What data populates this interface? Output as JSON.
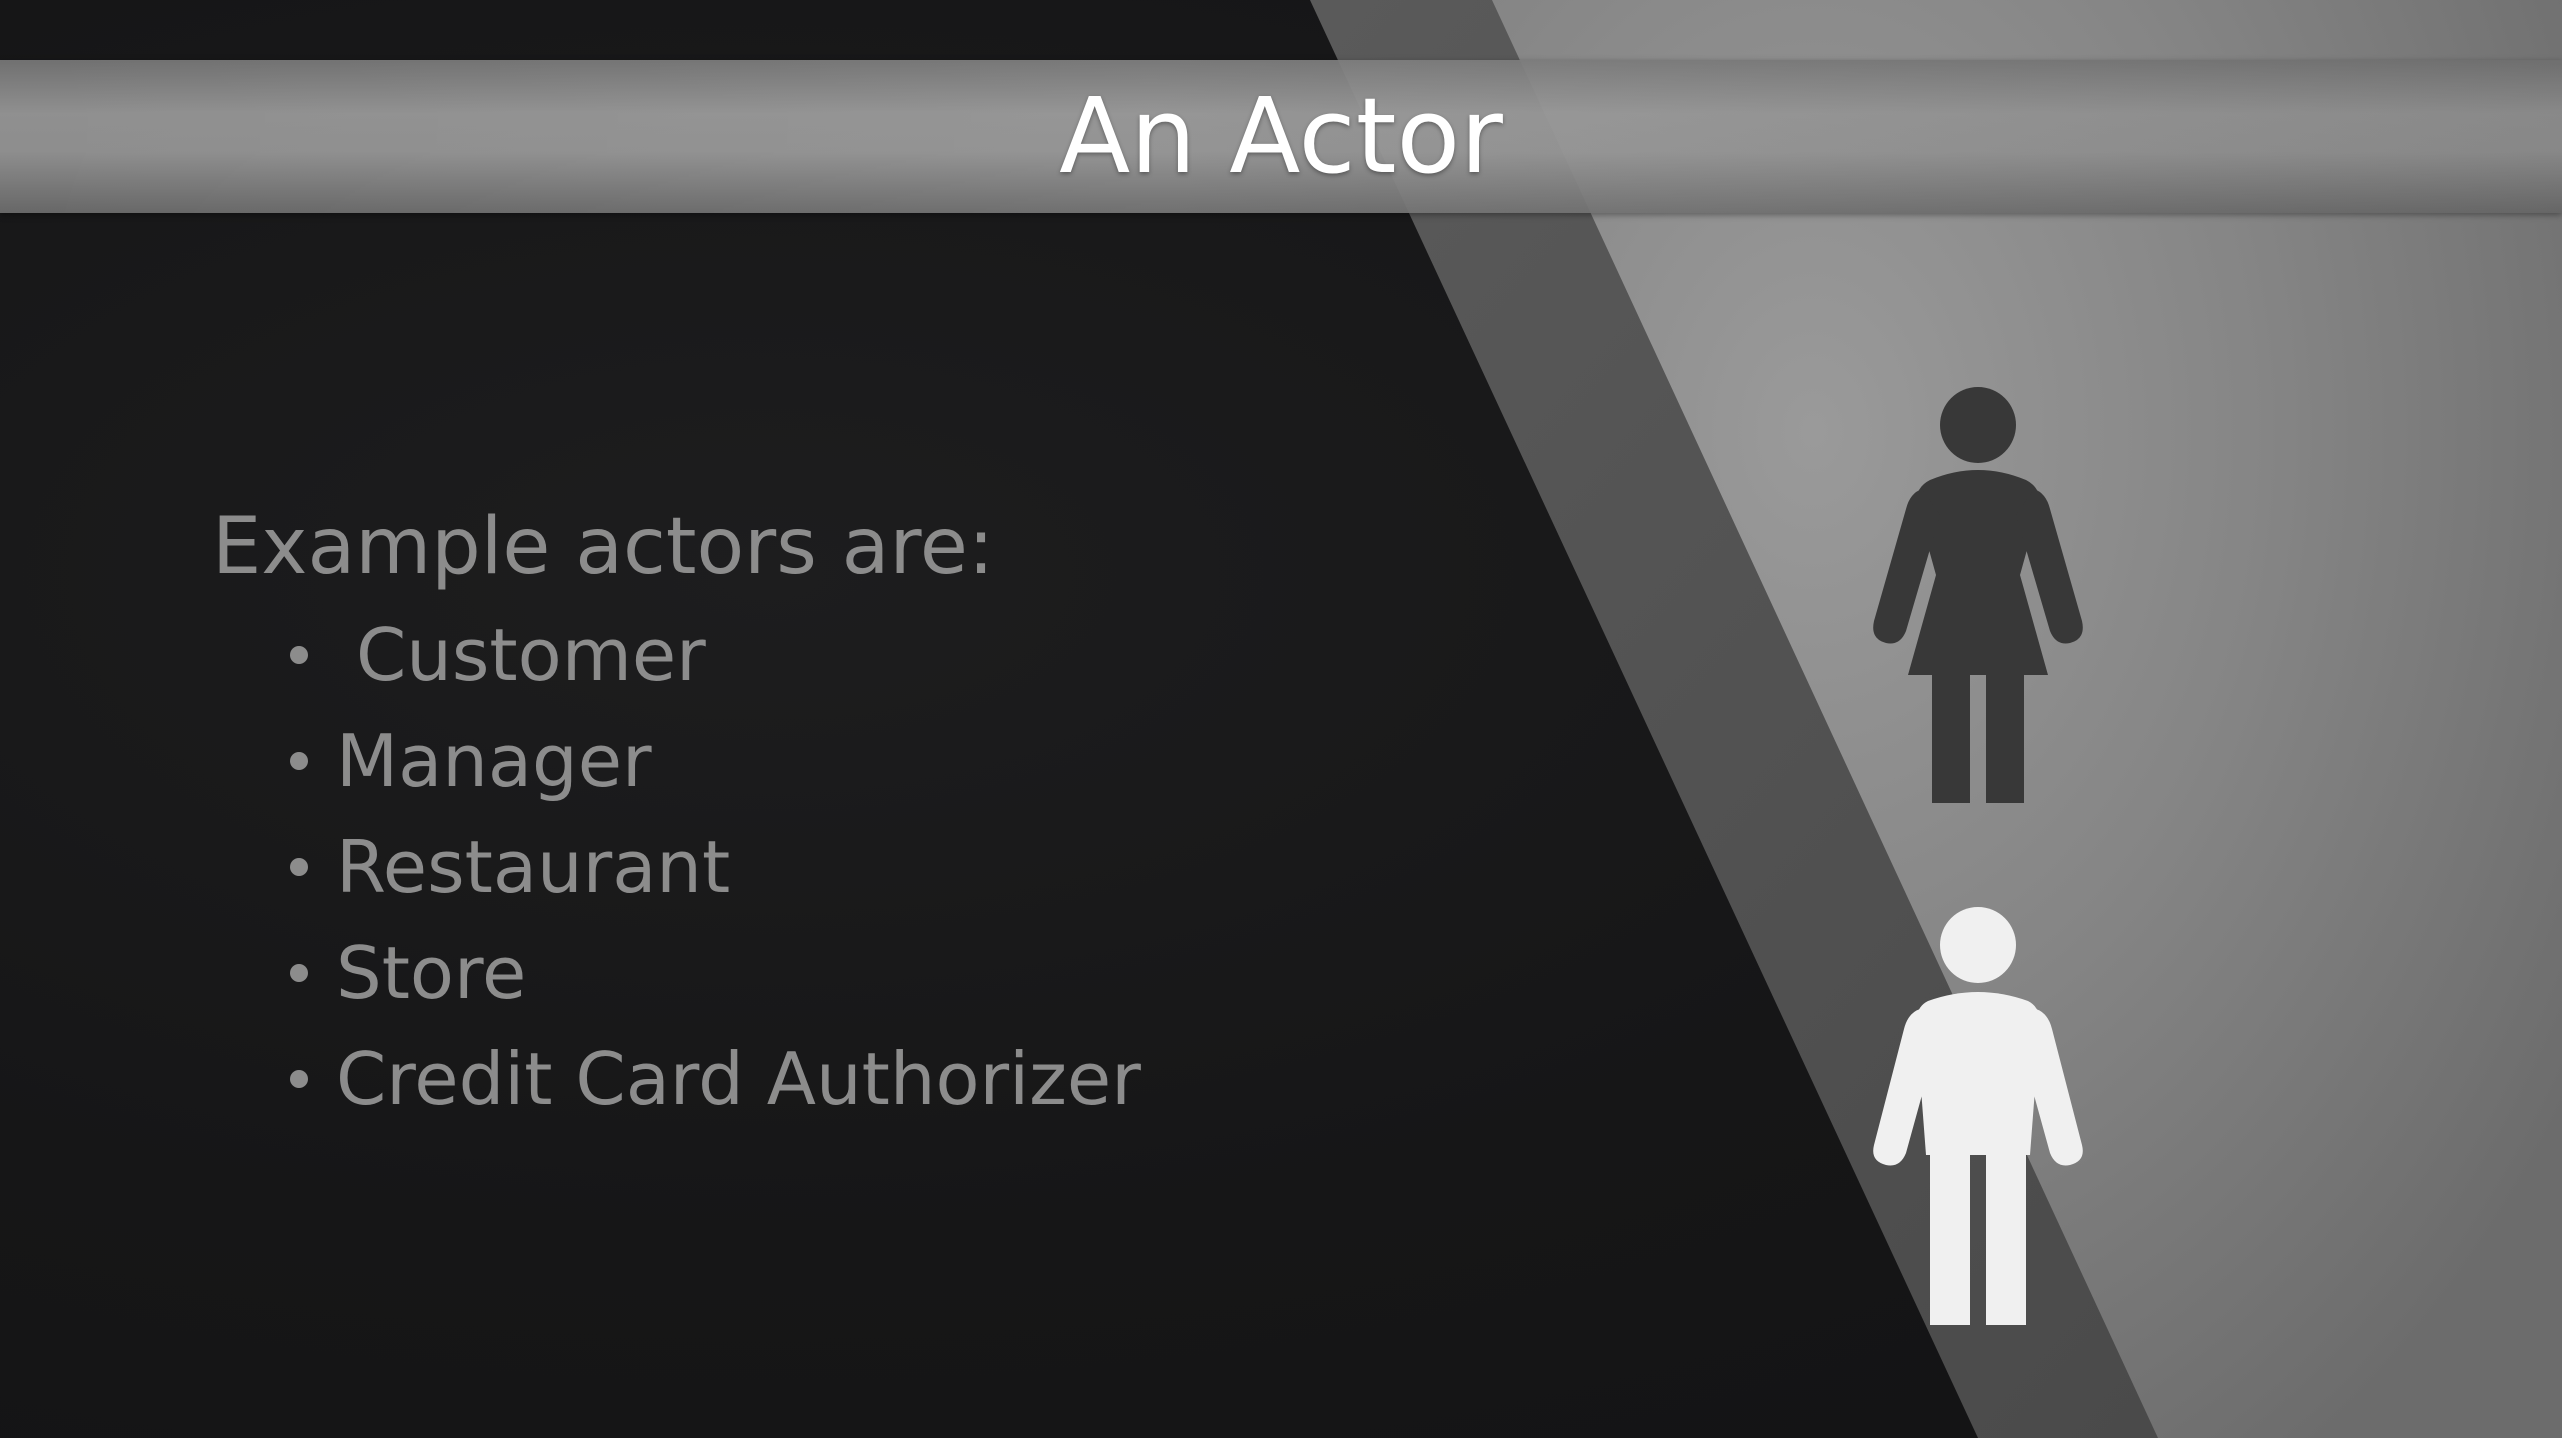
{
  "slide": {
    "title": "An Actor",
    "intro": "Example actors are:",
    "bullets": [
      "Customer",
      "Manager",
      "Restaurant",
      "Store",
      "Credit Card Authorizer"
    ]
  },
  "icons": {
    "top": "woman-figure-icon",
    "bottom": "man-figure-icon"
  },
  "colors": {
    "background": "#161617",
    "title_band": "#969696",
    "title_text": "#ffffff",
    "body_text": "#8c8c8c",
    "woman_figure": "#383838",
    "man_figure": "#f0f0f0"
  }
}
